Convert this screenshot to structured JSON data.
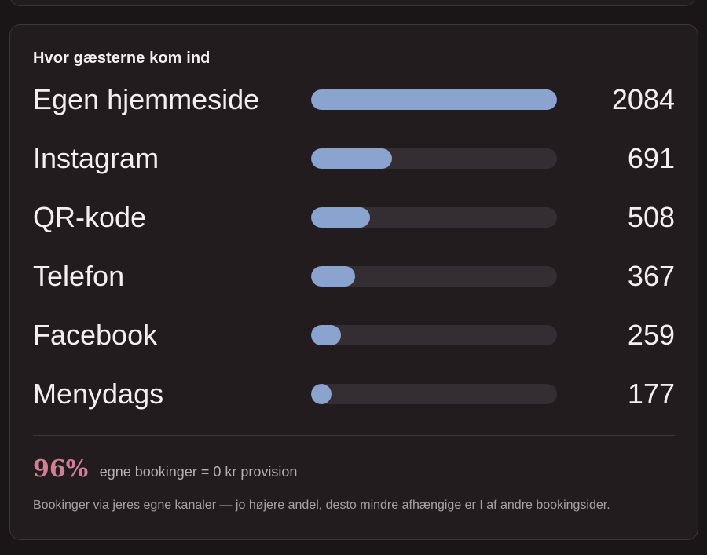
{
  "card": {
    "title": "Hvor gæsterne kom ind"
  },
  "channels": [
    {
      "label": "Egen hjemmeside",
      "value": "2084",
      "share": 1.0
    },
    {
      "label": "Instagram",
      "value": "691",
      "share": 0.33
    },
    {
      "label": "QR-kode",
      "value": "508",
      "share": 0.24
    },
    {
      "label": "Telefon",
      "value": "367",
      "share": 0.18
    },
    {
      "label": "Facebook",
      "value": "259",
      "share": 0.12
    },
    {
      "label": "Menydags",
      "value": "177",
      "share": 0.08
    }
  ],
  "summary": {
    "percent": "96%",
    "text": "egne bookinger = 0 kr provision",
    "footnote": "Bookinger via jeres egne kanaler — jo højere andel, desto mindre afhængige er I af andre bookingsider."
  },
  "colors": {
    "bar_fill": "#8aa4cf",
    "bar_track": "#342d31",
    "accent": "#d27f95"
  }
}
